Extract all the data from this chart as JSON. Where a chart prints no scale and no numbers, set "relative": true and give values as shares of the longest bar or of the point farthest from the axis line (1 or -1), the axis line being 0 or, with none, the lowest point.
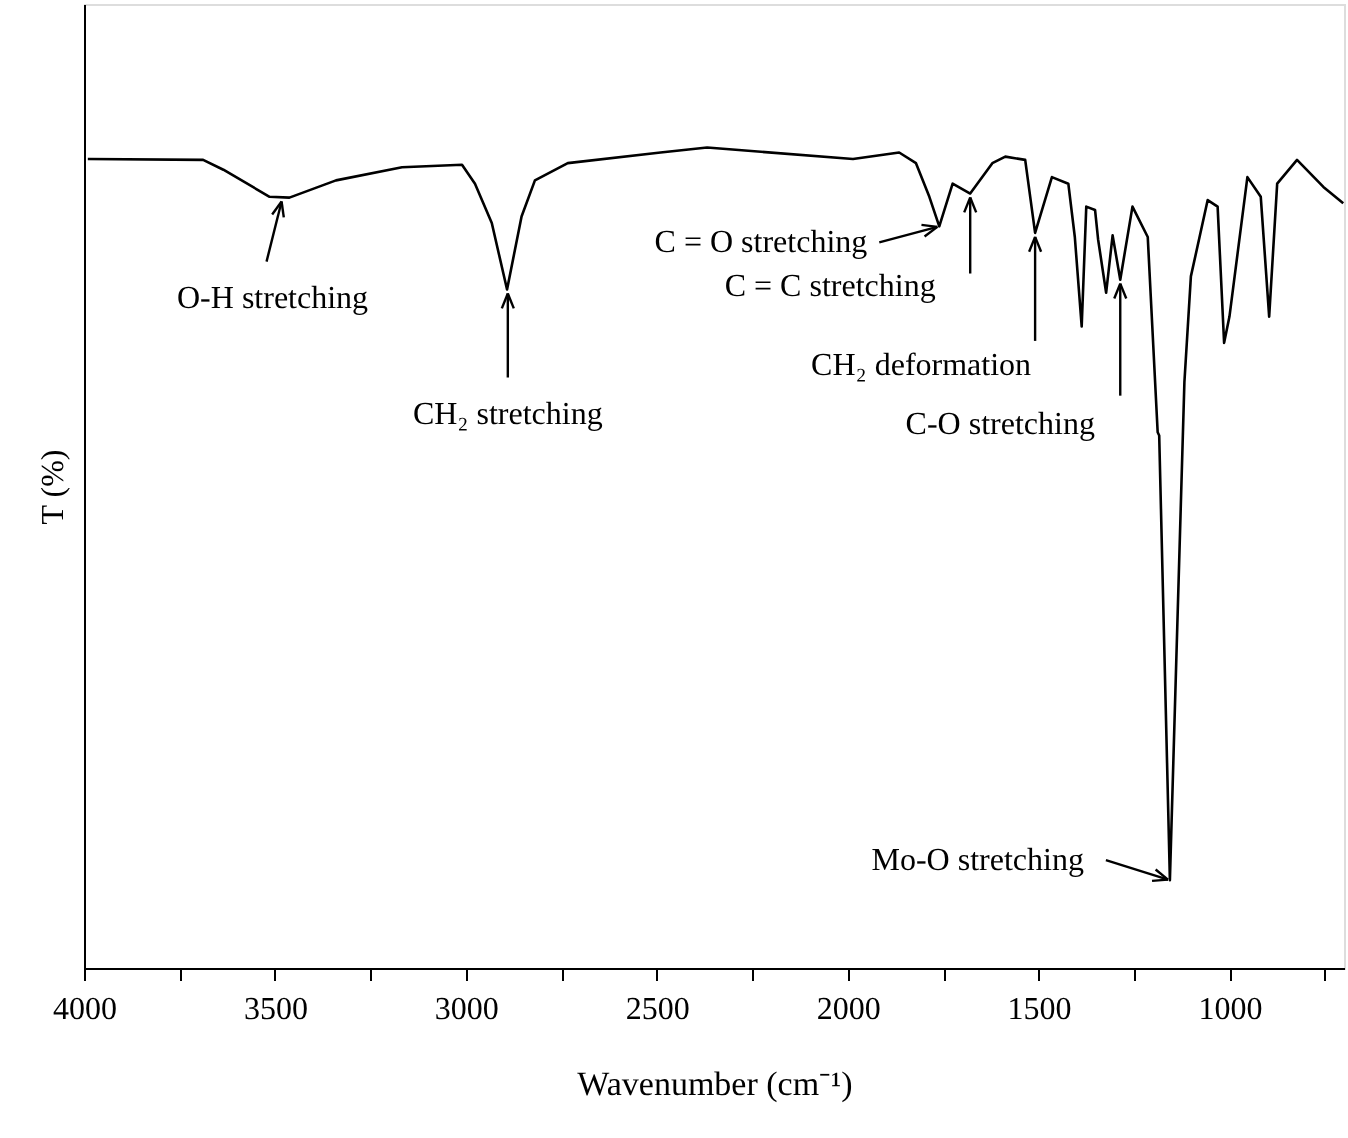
{
  "chart_data": {
    "type": "line",
    "relative": true,
    "xlabel": "Wavenumber (cm⁻¹)",
    "ylabel": "T (%)",
    "xlim": [
      4000,
      700
    ],
    "xticks": [
      4000,
      {
        "value": 3750,
        "label": null
      },
      3500,
      {
        "value": 3250,
        "label": null
      },
      3000,
      {
        "value": 2750,
        "label": null
      },
      2500,
      {
        "value": 2250,
        "label": null
      },
      2000,
      {
        "value": 1750,
        "label": null
      },
      1500,
      {
        "value": 1250,
        "label": null
      },
      1000,
      {
        "value": 750,
        "label": null
      }
    ],
    "grid": false,
    "marker": "none",
    "line_style": "solid",
    "series": [
      {
        "color": "#000000",
        "x": [
          3990,
          3688,
          3635,
          3514,
          3462,
          3340,
          3167,
          3010,
          2976,
          2932,
          2892,
          2854,
          2819,
          2733,
          2490,
          2368,
          1986,
          1865,
          1821,
          1786,
          1760,
          1725,
          1679,
          1621,
          1587,
          1535,
          1509,
          1465,
          1422,
          1405,
          1387,
          1375,
          1352,
          1344,
          1323,
          1306,
          1286,
          1254,
          1214,
          1188,
          1184,
          1156,
          1118,
          1101,
          1057,
          1031,
          1014,
          1000,
          953,
          918,
          896,
          875,
          823,
          754,
          702
        ],
        "values": [
          0.986,
          0.985,
          0.973,
          0.94,
          0.939,
          0.96,
          0.976,
          0.979,
          0.956,
          0.908,
          0.827,
          0.916,
          0.96,
          0.981,
          0.994,
          1.0,
          0.986,
          0.994,
          0.981,
          0.94,
          0.904,
          0.956,
          0.944,
          0.981,
          0.989,
          0.985,
          0.896,
          0.964,
          0.956,
          0.891,
          0.782,
          0.928,
          0.924,
          0.888,
          0.823,
          0.893,
          0.839,
          0.928,
          0.891,
          0.653,
          0.649,
          0.107,
          0.714,
          0.843,
          0.936,
          0.928,
          0.762,
          0.794,
          0.964,
          0.94,
          0.794,
          0.956,
          0.985,
          0.952,
          0.932
        ]
      }
    ],
    "annotations": [
      {
        "text": "O-H stretching",
        "x": 3480,
        "y": 0.939
      },
      {
        "text": "CH₂ stretching",
        "x": 2890,
        "y": 0.827
      },
      {
        "text": "C = O stretching",
        "x": 1760,
        "y": 0.904
      },
      {
        "text": "C = C stretching",
        "x": 1679,
        "y": 0.944
      },
      {
        "text": "CH₂ deformation",
        "x": 1509,
        "y": 0.896
      },
      {
        "text": "C-O stretching",
        "x": 1286,
        "y": 0.839
      },
      {
        "text": "Mo-O stretching",
        "x": 1156,
        "y": 0.107
      }
    ]
  }
}
